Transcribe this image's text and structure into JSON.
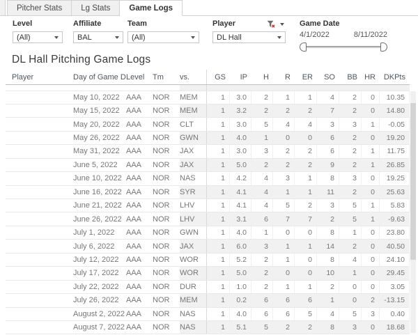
{
  "tabs": {
    "items": [
      {
        "label": "Pitcher Stats",
        "active": false
      },
      {
        "label": "Lg Stats",
        "active": false
      },
      {
        "label": "Game Logs",
        "active": true
      }
    ]
  },
  "filters": {
    "level": {
      "label": "Level",
      "value": "(All)"
    },
    "affiliate": {
      "label": "Affiliate",
      "value": "BAL"
    },
    "team": {
      "label": "Team",
      "value": "(All)"
    },
    "player": {
      "label": "Player",
      "value": "DL Hall",
      "icon": "funnel-filter-applied"
    },
    "game_date": {
      "label": "Game Date",
      "start": "4/1/2022",
      "end": "8/11/2022"
    }
  },
  "title": "DL Hall Pitching Game Logs",
  "table": {
    "columns": [
      "Player",
      "Day of Game Date",
      "Level",
      "Tm",
      "vs.",
      "GS",
      "IP",
      "H",
      "R",
      "ER",
      "SO",
      "BB",
      "HR",
      "DKPts"
    ],
    "rows": [
      {
        "player": "",
        "date": "May 10, 2022",
        "level": "AAA",
        "tm": "NOR",
        "vs": "MEM",
        "gs": "1",
        "ip": "3.0",
        "h": "2",
        "r": "1",
        "er": "1",
        "so": "4",
        "bb": "2",
        "hr": "0",
        "dkpts": "10.35"
      },
      {
        "player": "",
        "date": "May 15, 2022",
        "level": "AAA",
        "tm": "NOR",
        "vs": "MEM",
        "gs": "1",
        "ip": "3.2",
        "h": "2",
        "r": "2",
        "er": "2",
        "so": "7",
        "bb": "2",
        "hr": "0",
        "dkpts": "14.80"
      },
      {
        "player": "",
        "date": "May 20, 2022",
        "level": "AAA",
        "tm": "NOR",
        "vs": "CLT",
        "gs": "1",
        "ip": "3.0",
        "h": "5",
        "r": "4",
        "er": "4",
        "so": "3",
        "bb": "3",
        "hr": "1",
        "dkpts": "-0.05"
      },
      {
        "player": "",
        "date": "May 26, 2022",
        "level": "AAA",
        "tm": "NOR",
        "vs": "GWN",
        "gs": "1",
        "ip": "4.0",
        "h": "1",
        "r": "0",
        "er": "0",
        "so": "6",
        "bb": "2",
        "hr": "0",
        "dkpts": "19.20"
      },
      {
        "player": "",
        "date": "May 31, 2022",
        "level": "AAA",
        "tm": "NOR",
        "vs": "JAX",
        "gs": "1",
        "ip": "3.0",
        "h": "3",
        "r": "2",
        "er": "2",
        "so": "6",
        "bb": "2",
        "hr": "1",
        "dkpts": "11.75"
      },
      {
        "player": "",
        "date": "June 5, 2022",
        "level": "AAA",
        "tm": "NOR",
        "vs": "JAX",
        "gs": "1",
        "ip": "5.0",
        "h": "2",
        "r": "2",
        "er": "2",
        "so": "9",
        "bb": "2",
        "hr": "1",
        "dkpts": "26.85"
      },
      {
        "player": "",
        "date": "June 10, 2022",
        "level": "AAA",
        "tm": "NOR",
        "vs": "NAS",
        "gs": "1",
        "ip": "4.2",
        "h": "4",
        "r": "3",
        "er": "1",
        "so": "8",
        "bb": "3",
        "hr": "0",
        "dkpts": "19.25"
      },
      {
        "player": "",
        "date": "June 16, 2022",
        "level": "AAA",
        "tm": "NOR",
        "vs": "SYR",
        "gs": "1",
        "ip": "4.1",
        "h": "4",
        "r": "1",
        "er": "1",
        "so": "11",
        "bb": "2",
        "hr": "0",
        "dkpts": "25.63"
      },
      {
        "player": "",
        "date": "June 21, 2022",
        "level": "AAA",
        "tm": "NOR",
        "vs": "LHV",
        "gs": "1",
        "ip": "4.1",
        "h": "4",
        "r": "5",
        "er": "2",
        "so": "3",
        "bb": "5",
        "hr": "1",
        "dkpts": "5.83"
      },
      {
        "player": "",
        "date": "June 26, 2022",
        "level": "AAA",
        "tm": "NOR",
        "vs": "LHV",
        "gs": "1",
        "ip": "3.1",
        "h": "6",
        "r": "7",
        "er": "7",
        "so": "2",
        "bb": "5",
        "hr": "1",
        "dkpts": "-9.63"
      },
      {
        "player": "",
        "date": "July 1, 2022",
        "level": "AAA",
        "tm": "NOR",
        "vs": "GWN",
        "gs": "1",
        "ip": "4.0",
        "h": "1",
        "r": "0",
        "er": "0",
        "so": "8",
        "bb": "1",
        "hr": "0",
        "dkpts": "23.80"
      },
      {
        "player": "",
        "date": "July 6, 2022",
        "level": "AAA",
        "tm": "NOR",
        "vs": "JAX",
        "gs": "1",
        "ip": "6.0",
        "h": "3",
        "r": "1",
        "er": "1",
        "so": "14",
        "bb": "2",
        "hr": "0",
        "dkpts": "40.50"
      },
      {
        "player": "",
        "date": "July 12, 2022",
        "level": "AAA",
        "tm": "NOR",
        "vs": "WOR",
        "gs": "1",
        "ip": "5.2",
        "h": "2",
        "r": "1",
        "er": "0",
        "so": "8",
        "bb": "4",
        "hr": "0",
        "dkpts": "24.10"
      },
      {
        "player": "",
        "date": "July 17, 2022",
        "level": "AAA",
        "tm": "NOR",
        "vs": "WOR",
        "gs": "1",
        "ip": "5.0",
        "h": "2",
        "r": "0",
        "er": "0",
        "so": "10",
        "bb": "1",
        "hr": "0",
        "dkpts": "29.45"
      },
      {
        "player": "",
        "date": "July 22, 2022",
        "level": "AAA",
        "tm": "NOR",
        "vs": "DUR",
        "gs": "1",
        "ip": "1.0",
        "h": "2",
        "r": "1",
        "er": "1",
        "so": "2",
        "bb": "0",
        "hr": "0",
        "dkpts": "3.05"
      },
      {
        "player": "",
        "date": "July 26, 2022",
        "level": "AAA",
        "tm": "NOR",
        "vs": "MEM",
        "gs": "1",
        "ip": "0.2",
        "h": "6",
        "r": "6",
        "er": "6",
        "so": "1",
        "bb": "0",
        "hr": "2",
        "dkpts": "-13.15"
      },
      {
        "player": "",
        "date": "August 2, 2022",
        "level": "AAA",
        "tm": "NOR",
        "vs": "NAS",
        "gs": "1",
        "ip": "4.0",
        "h": "6",
        "r": "6",
        "er": "5",
        "so": "4",
        "bb": "5",
        "hr": "3",
        "dkpts": "0.40"
      },
      {
        "player": "",
        "date": "August 7, 2022",
        "level": "AAA",
        "tm": "NOR",
        "vs": "NAS",
        "gs": "1",
        "ip": "5.1",
        "h": "5",
        "r": "2",
        "er": "2",
        "so": "8",
        "bb": "3",
        "hr": "0",
        "dkpts": "18.68"
      }
    ]
  },
  "colors": {
    "row_band": "#f1f1f1",
    "header_text": "#4e5660",
    "cell_text": "#777777",
    "filter_icon_red": "#cf3a2f"
  }
}
